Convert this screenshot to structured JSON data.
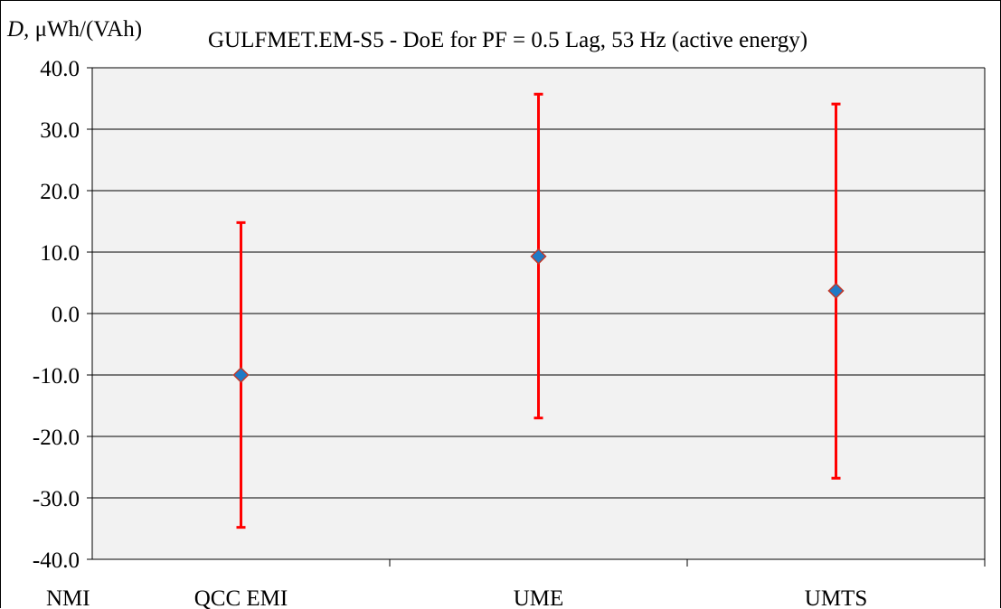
{
  "chart_data": {
    "type": "scatter",
    "title": "GULFMET.EM-S5 - DoE for PF = 0.5 Lag, 53 Hz (active energy)",
    "ylabel_italic": "D,",
    "ylabel_unit": " μWh/(VAh)",
    "xlabel": "NMI",
    "categories": [
      "QCC EMI",
      "UME",
      "UMTS"
    ],
    "ylim": [
      -40,
      40
    ],
    "y_ticks": [
      40,
      30,
      20,
      10,
      0,
      -10,
      -20,
      -30,
      -40
    ],
    "y_tick_labels": [
      "40.0",
      "30.0",
      "20.0",
      "10.0",
      "0.0",
      "-10.0",
      "-20.0",
      "-30.0",
      "-40.0"
    ],
    "series": [
      {
        "values": [
          -10.0,
          9.3,
          3.7
        ],
        "error_low": [
          -34.8,
          -17.0,
          -26.8
        ],
        "error_high": [
          14.8,
          35.7,
          34.1
        ]
      }
    ],
    "grid": true,
    "legend": "none"
  },
  "colors": {
    "plot_background": "#f2f2f2",
    "gridline": "#000000",
    "error_bar": "#ff0000",
    "marker_fill": "#1f7ac6",
    "marker_edge": "#c0392b"
  }
}
